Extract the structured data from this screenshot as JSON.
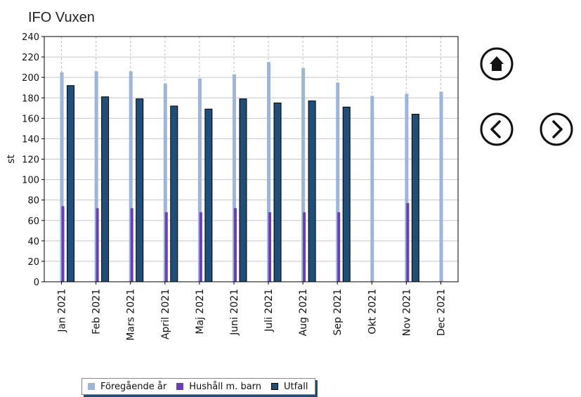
{
  "chart_data": {
    "type": "bar",
    "title": "IFO Vuxen",
    "ylabel": "st",
    "ylim": [
      0,
      240
    ],
    "yticks": [
      0,
      20,
      40,
      60,
      80,
      100,
      120,
      140,
      160,
      180,
      200,
      220,
      240
    ],
    "categories": [
      "Jan 2021",
      "Feb 2021",
      "Mars 2021",
      "April 2021",
      "Maj 2021",
      "Juni 2021",
      "Juli 2021",
      "Aug 2021",
      "Sep 2021",
      "Okt 2021",
      "Nov 2021",
      "Dec 2021"
    ],
    "grid": true,
    "legend_position": "bottom",
    "series": [
      {
        "name": "Föregående år",
        "color": "#9cb5d8",
        "values": [
          205,
          206,
          206,
          194,
          199,
          203,
          215,
          209,
          195,
          182,
          184,
          186
        ]
      },
      {
        "name": "Hushåll m. barn",
        "color": "#6a3fb5",
        "values": [
          74,
          72,
          72,
          68,
          68,
          72,
          68,
          68,
          68,
          null,
          77,
          null
        ]
      },
      {
        "name": "Utfall",
        "color": "#1f4e79",
        "values": [
          192,
          181,
          179,
          172,
          169,
          179,
          175,
          177,
          171,
          null,
          164,
          null
        ]
      }
    ]
  },
  "nav": {
    "home_icon": "home-icon",
    "prev_icon": "chevron-left-icon",
    "next_icon": "chevron-right-icon"
  }
}
